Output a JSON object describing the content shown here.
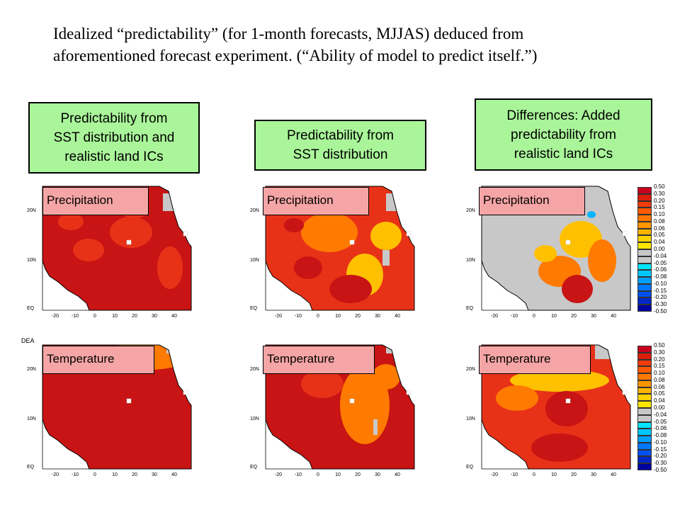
{
  "slide": {
    "title_line1": "Idealized “predictability” (for 1-month forecasts, MJJAS) deduced from",
    "title_line2": "aforementioned forecast experiment.  (“Ability of model to predict itself.”)"
  },
  "columns": [
    {
      "header": [
        "Predictability from",
        "SST distribution and",
        "realistic land ICs"
      ]
    },
    {
      "header": [
        "Predictability from",
        "SST distribution"
      ]
    },
    {
      "header": [
        "Differences: Added",
        "predictability from",
        "realistic land ICs"
      ]
    }
  ],
  "panels": {
    "precipitation_label": "Precipitation",
    "temperature_label": "Temperature",
    "lat_labels": [
      "20N",
      "10N",
      "EQ"
    ],
    "lon_labels": [
      "-20",
      "-10",
      "0",
      "10",
      "20",
      "30",
      "40"
    ],
    "stray_text_left": "DEA"
  },
  "colorbar": {
    "ticks": [
      "0.50",
      "0.30",
      "0.20",
      "0.15",
      "0.10",
      "0.08",
      "0.06",
      "0.05",
      "0.04",
      "0.00",
      "-0.04",
      "-0.05",
      "-0.06",
      "-0.08",
      "-0.10",
      "-0.15",
      "-0.20",
      "-0.30",
      "-0.50"
    ],
    "colors": [
      "#c8001e",
      "#dc1e0a",
      "#f03c0a",
      "#ff5a00",
      "#ff7800",
      "#ff9600",
      "#ffb400",
      "#ffd200",
      "#ffe600",
      "#c8c8c8",
      "#c8c8c8",
      "#00e6ff",
      "#00c8ff",
      "#00a0ff",
      "#0078ff",
      "#0050f0",
      "#0028c8",
      "#0000a0"
    ]
  },
  "colors": {
    "header_bg": "#aaf59a",
    "label_bg": "#f5a5a5",
    "high": "#c81414",
    "mid_high": "#e83218",
    "mid": "#ff7a00",
    "low": "#ffc000",
    "neutral": "#c8c8c8",
    "negative": "#00b4ff"
  }
}
